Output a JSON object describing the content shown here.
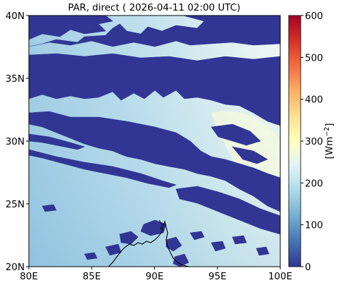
{
  "title": "PAR, direct ( 2026-04-11 02:00 UTC)",
  "colorbar": {
    "label": "[Wm$^{-2}$]",
    "label_main": "[Wm",
    "label_sup": "−2",
    "label_end": "]",
    "range": [
      0,
      600
    ],
    "ticks": [
      "0",
      "100",
      "200",
      "300",
      "400",
      "500",
      "600"
    ],
    "colormap": "RdYlBu_r",
    "colors": [
      "#313695",
      "#4575b4",
      "#74add1",
      "#abd9e9",
      "#e0f3f8",
      "#ffffbf",
      "#fee090",
      "#fdae61",
      "#f46d43",
      "#d73027",
      "#a50026"
    ]
  },
  "map": {
    "lon_range": [
      80,
      100
    ],
    "lat_range": [
      20,
      40
    ],
    "x_ticks": [
      "80E",
      "85E",
      "90E",
      "95E",
      "100E"
    ],
    "y_ticks": [
      "20N",
      "25N",
      "30N",
      "35N",
      "40N"
    ],
    "cloud_color": "#313695",
    "clear_sky_color_west": "#8fc3df",
    "clear_sky_color_east": "#eef7f3",
    "coastline_color": "#000000"
  }
}
